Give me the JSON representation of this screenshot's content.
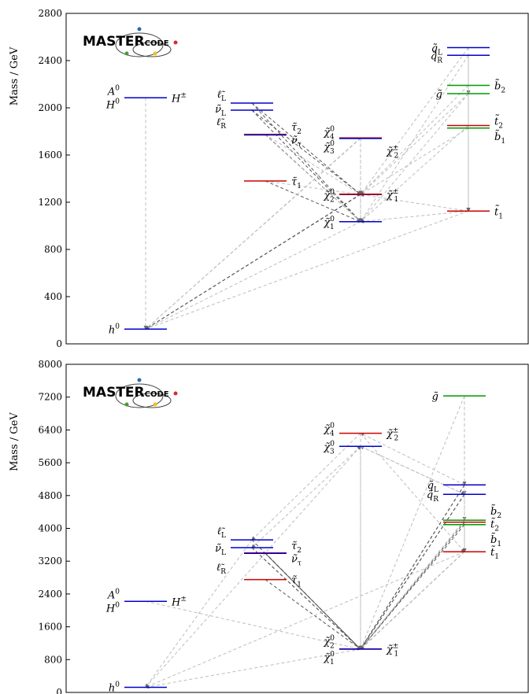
{
  "chart_data": [
    {
      "type": "mass-spectrum",
      "ylabel": "Mass / GeV",
      "ylim": [
        0,
        2800
      ],
      "yticks": [
        0,
        400,
        800,
        1200,
        1600,
        2000,
        2400,
        2800
      ],
      "logo": {
        "main": "MASTER",
        "small": "CODE"
      },
      "levels": [
        {
          "name": "h0",
          "base": "h",
          "sup": "0",
          "sub": "",
          "tilde": false,
          "mass": 125,
          "col": 0,
          "color": "#0000cc",
          "label_side": "left"
        },
        {
          "name": "A0",
          "base": "A",
          "sup": "0",
          "sub": "",
          "tilde": false,
          "mass": 2085,
          "col": 0,
          "color": "#cc0000",
          "label_side": "left",
          "dy": -9
        },
        {
          "name": "H0",
          "base": "H",
          "sup": "0",
          "sub": "",
          "tilde": false,
          "mass": 2085,
          "col": 0,
          "color": "#0000cc",
          "label_side": "left",
          "dy": 8
        },
        {
          "name": "H+-",
          "base": "H",
          "sup": "±",
          "sub": "",
          "tilde": false,
          "mass": 2085,
          "col": 0,
          "color": "#cc0000",
          "label_side": "right",
          "skip_line": true
        },
        {
          "name": "eL",
          "base": "ℓ",
          "sup": "",
          "sub": "L",
          "tilde": true,
          "mass": 2040,
          "col": 1,
          "color": "#0000cc",
          "label_side": "left",
          "dy": -12
        },
        {
          "name": "nuL",
          "base": "ν",
          "sup": "",
          "sub": "L",
          "tilde": true,
          "mass": 1980,
          "col": 1,
          "color": "#0000cc",
          "label_side": "left",
          "dy": -2
        },
        {
          "name": "eR",
          "base": "ℓ",
          "sup": "",
          "sub": "R",
          "tilde": true,
          "mass": 1980,
          "col": 1,
          "color": "#0000cc",
          "label_side": "left",
          "dy": 14,
          "skip_line": true
        },
        {
          "name": "tau2",
          "base": "τ",
          "sup": "",
          "sub": "2",
          "tilde": true,
          "mass": 1775,
          "col": 2,
          "color": "#cc0000",
          "label_side": "right",
          "dy": -10
        },
        {
          "name": "nutau",
          "base": "ν",
          "sup": "",
          "sub": "τ",
          "tilde": true,
          "mass": 1770,
          "col": 2,
          "color": "#0000cc",
          "label_side": "right",
          "dy": 6
        },
        {
          "name": "tau1",
          "base": "τ",
          "sup": "",
          "sub": "1",
          "tilde": true,
          "mass": 1380,
          "col": 2,
          "color": "#cc0000",
          "label_side": "right"
        },
        {
          "name": "chi40",
          "base": "χ",
          "sup": "0",
          "sub": "4",
          "tilde": true,
          "mass": 1745,
          "col": 3,
          "color": "#cc0000",
          "label_side": "left",
          "dy": -8
        },
        {
          "name": "chi30",
          "base": "χ",
          "sup": "0",
          "sub": "3",
          "tilde": true,
          "mass": 1740,
          "col": 3,
          "color": "#0000cc",
          "label_side": "left",
          "dy": 10
        },
        {
          "name": "chi2pm",
          "base": "χ",
          "sup": "±",
          "sub": "2",
          "tilde": true,
          "mass": 1742,
          "col": 3,
          "color": "#cc0000",
          "label_side": "right",
          "skip_line": true,
          "dy": 16
        },
        {
          "name": "chi20",
          "base": "χ",
          "sup": "0",
          "sub": "2",
          "tilde": true,
          "mass": 1265,
          "col": 3,
          "color": "#0000cc",
          "label_side": "left"
        },
        {
          "name": "chi1pm",
          "base": "χ",
          "sup": "±",
          "sub": "1",
          "tilde": true,
          "mass": 1268,
          "col": 3,
          "color": "#cc0000",
          "label_side": "right"
        },
        {
          "name": "chi10",
          "base": "χ",
          "sup": "0",
          "sub": "1",
          "tilde": true,
          "mass": 1035,
          "col": 3,
          "color": "#0000cc",
          "label_side": "left"
        },
        {
          "name": "qL",
          "base": "q",
          "sup": "",
          "sub": "L",
          "tilde": true,
          "mass": 2510,
          "col": 4,
          "color": "#0000cc",
          "label_side": "left"
        },
        {
          "name": "qR",
          "base": "q",
          "sup": "",
          "sub": "R",
          "tilde": true,
          "mass": 2445,
          "col": 4,
          "color": "#0000cc",
          "label_side": "left"
        },
        {
          "name": "gluino",
          "base": "g",
          "sup": "",
          "sub": "",
          "tilde": true,
          "mass": 2120,
          "col": 4,
          "color": "#009900",
          "label_side": "left"
        },
        {
          "name": "b2",
          "base": "b",
          "sup": "",
          "sub": "2",
          "tilde": true,
          "mass": 2190,
          "col": 4,
          "color": "#009900",
          "label_side": "right"
        },
        {
          "name": "t2",
          "base": "t",
          "sup": "",
          "sub": "2",
          "tilde": true,
          "mass": 1850,
          "col": 4,
          "color": "#cc0000",
          "label_side": "right",
          "dy": -6
        },
        {
          "name": "b1",
          "base": "b",
          "sup": "",
          "sub": "1",
          "tilde": true,
          "mass": 1828,
          "col": 4,
          "color": "#009900",
          "label_side": "right",
          "dy": 10
        },
        {
          "name": "t1",
          "base": "t",
          "sup": "",
          "sub": "1",
          "tilde": true,
          "mass": 1125,
          "col": 4,
          "color": "#cc0000",
          "label_side": "right"
        }
      ],
      "decays": [
        [
          "eL",
          "chi10",
          1
        ],
        [
          "eL",
          "chi20",
          1
        ],
        [
          "nuL",
          "chi10",
          1
        ],
        [
          "nuL",
          "chi1pm",
          1
        ],
        [
          "tau2",
          "chi10",
          1
        ],
        [
          "tau2",
          "chi20",
          0
        ],
        [
          "tau1",
          "chi10",
          1
        ],
        [
          "nutau",
          "chi10",
          0
        ],
        [
          "chi40",
          "chi10",
          0
        ],
        [
          "chi40",
          "chi20",
          0
        ],
        [
          "chi30",
          "chi10",
          0
        ],
        [
          "chi30",
          "chi1pm",
          0
        ],
        [
          "chi20",
          "chi10",
          0
        ],
        [
          "chi1pm",
          "chi10",
          0
        ],
        [
          "qL",
          "gluino",
          1
        ],
        [
          "qR",
          "gluino",
          1
        ],
        [
          "qL",
          "chi20",
          0
        ],
        [
          "qR",
          "chi10",
          0
        ],
        [
          "gluino",
          "t1",
          0
        ],
        [
          "gluino",
          "chi10",
          0
        ],
        [
          "b2",
          "t1",
          0
        ],
        [
          "t2",
          "t1",
          0
        ],
        [
          "b1",
          "t1",
          0
        ],
        [
          "t1",
          "chi10",
          0
        ],
        [
          "t1",
          "chi20",
          0
        ],
        [
          "gluino",
          "chi20",
          0
        ],
        [
          "b2",
          "chi1pm",
          0
        ],
        [
          "t2",
          "chi10",
          0
        ],
        [
          "qL",
          "t1",
          0
        ],
        [
          "qR",
          "t1",
          0
        ],
        [
          "chi1pm",
          "h0",
          1
        ],
        [
          "chi20",
          "h0",
          1
        ],
        [
          "chi10",
          "h0",
          0
        ],
        [
          "A0",
          "h0",
          0
        ],
        [
          "chi40",
          "h0",
          0
        ],
        [
          "chi30",
          "h0",
          0
        ],
        [
          "tau1",
          "chi20",
          0
        ],
        [
          "t1",
          "h0",
          0
        ],
        [
          "b1",
          "chi20",
          0
        ]
      ]
    },
    {
      "type": "mass-spectrum",
      "ylabel": "Mass / GeV",
      "ylim": [
        0,
        8000
      ],
      "yticks": [
        0,
        800,
        1600,
        2400,
        3200,
        4000,
        4800,
        5600,
        6400,
        7200,
        8000
      ],
      "logo": {
        "main": "MASTER",
        "small": "CODE"
      },
      "levels": [
        {
          "name": "h0",
          "base": "h",
          "sup": "0",
          "sub": "",
          "tilde": false,
          "mass": 125,
          "col": 0,
          "color": "#0000cc",
          "label_side": "left"
        },
        {
          "name": "A0",
          "base": "A",
          "sup": "0",
          "sub": "",
          "tilde": false,
          "mass": 2220,
          "col": 0,
          "color": "#cc0000",
          "label_side": "left",
          "dy": -9
        },
        {
          "name": "H0",
          "base": "H",
          "sup": "0",
          "sub": "",
          "tilde": false,
          "mass": 2220,
          "col": 0,
          "color": "#0000cc",
          "label_side": "left",
          "dy": 8
        },
        {
          "name": "H+-",
          "base": "H",
          "sup": "±",
          "sub": "",
          "tilde": false,
          "mass": 2220,
          "col": 0,
          "color": "#cc0000",
          "label_side": "right",
          "skip_line": true
        },
        {
          "name": "eL",
          "base": "ℓ",
          "sup": "",
          "sub": "L",
          "tilde": true,
          "mass": 3720,
          "col": 1,
          "color": "#0000cc",
          "label_side": "left",
          "dy": -12
        },
        {
          "name": "nuL",
          "base": "ν",
          "sup": "",
          "sub": "L",
          "tilde": true,
          "mass": 3530,
          "col": 1,
          "color": "#0000cc",
          "label_side": "left",
          "dy": 0
        },
        {
          "name": "eR",
          "base": "ℓ",
          "sup": "",
          "sub": "R",
          "tilde": true,
          "mass": 3530,
          "col": 1,
          "color": "#0000cc",
          "label_side": "left",
          "dy": 24,
          "skip_line": true
        },
        {
          "name": "tau2",
          "base": "τ",
          "sup": "",
          "sub": "2",
          "tilde": true,
          "mass": 3400,
          "col": 2,
          "color": "#cc0000",
          "label_side": "right",
          "dy": -10
        },
        {
          "name": "nutau",
          "base": "ν",
          "sup": "",
          "sub": "τ",
          "tilde": true,
          "mass": 3390,
          "col": 2,
          "color": "#0000cc",
          "label_side": "right",
          "dy": 6
        },
        {
          "name": "tau1",
          "base": "τ",
          "sup": "",
          "sub": "1",
          "tilde": true,
          "mass": 2750,
          "col": 2,
          "color": "#cc0000",
          "label_side": "right"
        },
        {
          "name": "chi40",
          "base": "χ",
          "sup": "0",
          "sub": "4",
          "tilde": true,
          "mass": 6320,
          "col": 3,
          "color": "#cc0000",
          "label_side": "left",
          "dy": -6
        },
        {
          "name": "chi2pm",
          "base": "χ",
          "sup": "±",
          "sub": "2",
          "tilde": true,
          "mass": 6320,
          "col": 3,
          "color": "#cc0000",
          "label_side": "right",
          "skip_line": true
        },
        {
          "name": "chi30",
          "base": "χ",
          "sup": "0",
          "sub": "3",
          "tilde": true,
          "mass": 6000,
          "col": 3,
          "color": "#0000cc",
          "label_side": "left"
        },
        {
          "name": "chi20",
          "base": "χ",
          "sup": "0",
          "sub": "2",
          "tilde": true,
          "mass": 1060,
          "col": 3,
          "color": "#0000cc",
          "label_side": "left",
          "dy": -10
        },
        {
          "name": "chi1pm",
          "base": "χ",
          "sup": "±",
          "sub": "1",
          "tilde": true,
          "mass": 1060,
          "col": 3,
          "color": "#cc0000",
          "label_side": "right"
        },
        {
          "name": "chi10",
          "base": "χ",
          "sup": "0",
          "sub": "1",
          "tilde": true,
          "mass": 1055,
          "col": 3,
          "color": "#0000cc",
          "label_side": "left",
          "dy": 10
        },
        {
          "name": "gluino",
          "base": "g",
          "sup": "",
          "sub": "",
          "tilde": true,
          "mass": 7230,
          "col": 4,
          "color": "#009900",
          "label_side": "left"
        },
        {
          "name": "qL",
          "base": "q",
          "sup": "",
          "sub": "L",
          "tilde": true,
          "mass": 5060,
          "col": 4,
          "color": "#0000cc",
          "label_side": "left"
        },
        {
          "name": "qR",
          "base": "q",
          "sup": "",
          "sub": "R",
          "tilde": true,
          "mass": 4830,
          "col": 4,
          "color": "#0000cc",
          "label_side": "left"
        },
        {
          "name": "b2",
          "base": "b",
          "sup": "",
          "sub": "2",
          "tilde": true,
          "mass": 4200,
          "col": 4,
          "color": "#009900",
          "label_side": "right",
          "dy": -12
        },
        {
          "name": "t2",
          "base": "t",
          "sup": "",
          "sub": "2",
          "tilde": true,
          "mass": 4150,
          "col": 4,
          "color": "#cc0000",
          "label_side": "right",
          "dy": 2
        },
        {
          "name": "b1",
          "base": "b",
          "sup": "",
          "sub": "1",
          "tilde": true,
          "mass": 4090,
          "col": 4,
          "color": "#009900",
          "label_side": "right",
          "dy": 18
        },
        {
          "name": "t1",
          "base": "t",
          "sup": "",
          "sub": "1",
          "tilde": true,
          "mass": 3430,
          "col": 4,
          "color": "#cc0000",
          "label_side": "right"
        }
      ],
      "decays": [
        [
          "gluino",
          "t1",
          0
        ],
        [
          "gluino",
          "qL",
          0
        ],
        [
          "gluino",
          "qR",
          0
        ],
        [
          "gluino",
          "b2",
          0
        ],
        [
          "gluino",
          "chi10",
          0
        ],
        [
          "qL",
          "chi10",
          1
        ],
        [
          "qR",
          "chi10",
          1
        ],
        [
          "qL",
          "chi20",
          1
        ],
        [
          "qR",
          "chi1pm",
          1
        ],
        [
          "qL",
          "chi40",
          0
        ],
        [
          "qR",
          "chi30",
          0
        ],
        [
          "b2",
          "chi10",
          1
        ],
        [
          "t2",
          "chi10",
          1
        ],
        [
          "b1",
          "chi10",
          1
        ],
        [
          "t1",
          "chi10",
          1
        ],
        [
          "t2",
          "t1",
          0
        ],
        [
          "b1",
          "t1",
          0
        ],
        [
          "chi40",
          "chi10",
          0
        ],
        [
          "chi30",
          "chi10",
          0
        ],
        [
          "chi40",
          "eL",
          0
        ],
        [
          "chi30",
          "nuL",
          0
        ],
        [
          "chi2pm",
          "chi10",
          0
        ],
        [
          "eL",
          "chi10",
          1
        ],
        [
          "nuL",
          "chi10",
          1
        ],
        [
          "tau2",
          "chi10",
          1
        ],
        [
          "nutau",
          "chi10",
          1
        ],
        [
          "tau1",
          "chi10",
          1
        ],
        [
          "eR",
          "chi10",
          1
        ],
        [
          "chi10",
          "h0",
          0
        ],
        [
          "A0",
          "chi10",
          0
        ],
        [
          "t1",
          "chi20",
          0
        ],
        [
          "b2",
          "chi1pm",
          0
        ],
        [
          "qL",
          "t1",
          0
        ],
        [
          "qR",
          "t1",
          0
        ],
        [
          "chi40",
          "t1",
          0
        ],
        [
          "chi30",
          "qR",
          0
        ],
        [
          "h0",
          "chi30",
          0
        ],
        [
          "t1",
          "h0",
          0
        ],
        [
          "eL",
          "h0",
          0
        ]
      ]
    }
  ]
}
